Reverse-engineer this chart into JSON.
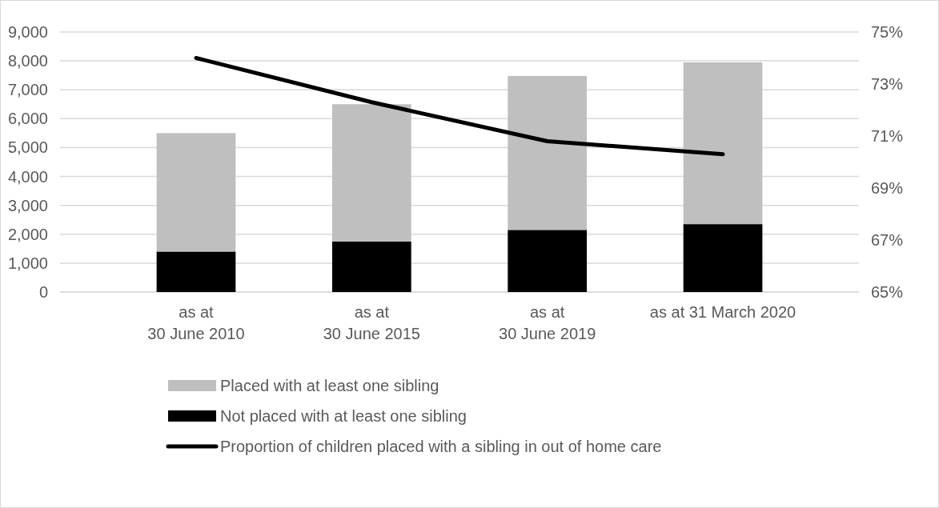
{
  "chart_data": {
    "type": "bar",
    "stacked": true,
    "categories": [
      "as at\n30 June 2010",
      "as at\n30 June 2015",
      "as at\n30 June 2019",
      "as at 31 March 2020"
    ],
    "series": [
      {
        "name": "Not placed with at least one sibling",
        "color": "#000000",
        "values": [
          1400,
          1750,
          2150,
          2350
        ]
      },
      {
        "name": "Placed with at least one sibling",
        "color": "#bfbfbf",
        "values": [
          4100,
          4750,
          5330,
          5600
        ]
      },
      {
        "name": "Proportion of children placed with a sibling in out of home care",
        "type": "line",
        "axis": "y2",
        "color": "#000000",
        "values": [
          74.0,
          72.3,
          70.8,
          70.3
        ]
      }
    ],
    "ylim": [
      0,
      9000
    ],
    "yticks": [
      0,
      {
        "value": 1000,
        "label": "1,000"
      },
      {
        "value": 2000,
        "label": "2,000"
      },
      {
        "value": 3000,
        "label": "3,000"
      },
      {
        "value": 4000,
        "label": "4,000"
      },
      {
        "value": 5000,
        "label": "5,000"
      },
      {
        "value": 6000,
        "label": "6,000"
      },
      {
        "value": 7000,
        "label": "7,000"
      },
      {
        "value": 8000,
        "label": "8,000"
      },
      {
        "value": 9000,
        "label": "9,000"
      }
    ],
    "y2lim": [
      65,
      75
    ],
    "y2ticks": [
      {
        "value": 65,
        "label": "65%"
      },
      {
        "value": 67,
        "label": "67%"
      },
      {
        "value": 69,
        "label": "69%"
      },
      {
        "value": 71,
        "label": "71%"
      },
      {
        "value": 73,
        "label": "73%"
      },
      {
        "value": 75,
        "label": "75%"
      }
    ],
    "grid": "y",
    "legend": "bottom",
    "marker": "none",
    "line_style": "solid"
  }
}
